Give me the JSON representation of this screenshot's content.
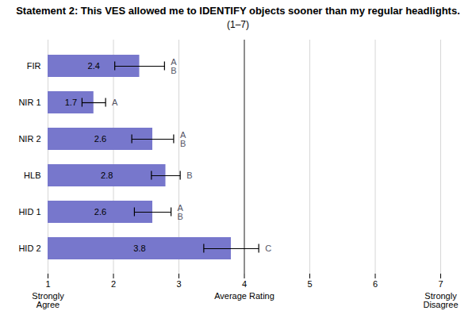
{
  "chart_data": {
    "type": "bar",
    "orientation": "horizontal",
    "title": "Statement 2: This VES allowed me to IDENTIFY objects sooner than my regular headlights.",
    "subtitle": "(1–7)",
    "categories": [
      "HID 2",
      "HID 1",
      "HLB",
      "NIR 2",
      "NIR 1",
      "FIR"
    ],
    "values": [
      3.8,
      2.6,
      2.8,
      2.6,
      1.7,
      2.4
    ],
    "errors": [
      0.42,
      0.28,
      0.22,
      0.32,
      0.18,
      0.38
    ],
    "letters": [
      "C",
      "A\nB",
      "B",
      "A\nB",
      "A",
      "A\nB"
    ],
    "color": "#7777cc",
    "data_labels": true,
    "xlim": [
      1,
      7
    ],
    "xticks": [
      1,
      2,
      3,
      4,
      5,
      6,
      7
    ],
    "xlabel": "Average Rating",
    "x_end_labels": [
      "Strongly\nAgree",
      "Strongly\nDisagree"
    ],
    "reference_line": 4,
    "grid": true
  }
}
